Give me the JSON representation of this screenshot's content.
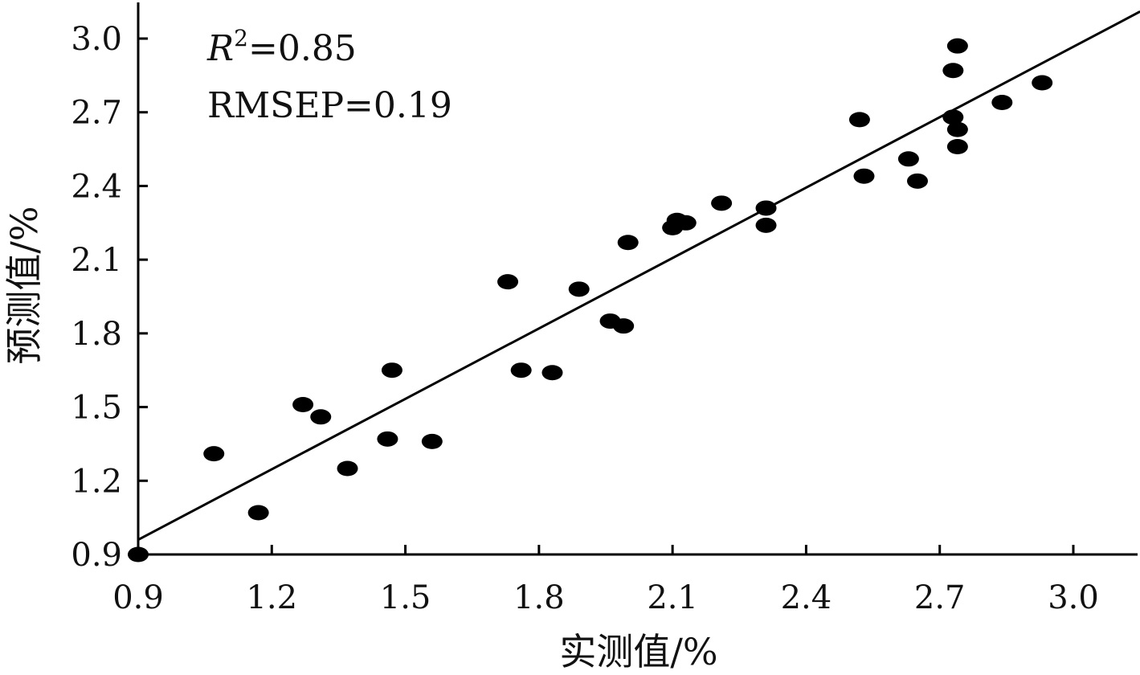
{
  "chart_data": {
    "type": "scatter",
    "xlabel": "实测值/%",
    "ylabel": "预测值/%",
    "xlim": [
      0.9,
      3.15
    ],
    "ylim": [
      0.9,
      3.1
    ],
    "x_ticks": [
      "0.9",
      "1.2",
      "1.5",
      "1.8",
      "2.1",
      "2.4",
      "2.7",
      "3.0"
    ],
    "y_ticks": [
      "0.9",
      "1.2",
      "1.5",
      "1.8",
      "2.1",
      "2.4",
      "2.7",
      "3.0"
    ],
    "grid": false,
    "annotations": {
      "r2_symbol": "R",
      "r2_sup": "2",
      "r2_value": "=0.85",
      "rmsep": "RMSEP=0.19"
    },
    "fit_line": {
      "x": [
        0.9,
        3.15
      ],
      "y": [
        0.96,
        3.11
      ]
    },
    "colors": {
      "marker": "#000000",
      "line": "#000000",
      "axis": "#000000"
    },
    "points": [
      {
        "x": 0.9,
        "y": 0.9
      },
      {
        "x": 1.07,
        "y": 1.31
      },
      {
        "x": 1.17,
        "y": 1.07
      },
      {
        "x": 1.27,
        "y": 1.51
      },
      {
        "x": 1.31,
        "y": 1.46
      },
      {
        "x": 1.37,
        "y": 1.25
      },
      {
        "x": 1.46,
        "y": 1.37
      },
      {
        "x": 1.47,
        "y": 1.65
      },
      {
        "x": 1.56,
        "y": 1.36
      },
      {
        "x": 1.73,
        "y": 2.01
      },
      {
        "x": 1.76,
        "y": 1.65
      },
      {
        "x": 1.83,
        "y": 1.64
      },
      {
        "x": 1.89,
        "y": 1.98
      },
      {
        "x": 1.96,
        "y": 1.85
      },
      {
        "x": 1.99,
        "y": 1.83
      },
      {
        "x": 2.0,
        "y": 2.17
      },
      {
        "x": 2.1,
        "y": 2.23
      },
      {
        "x": 2.11,
        "y": 2.26
      },
      {
        "x": 2.13,
        "y": 2.25
      },
      {
        "x": 2.21,
        "y": 2.33
      },
      {
        "x": 2.31,
        "y": 2.31
      },
      {
        "x": 2.31,
        "y": 2.24
      },
      {
        "x": 2.52,
        "y": 2.67
      },
      {
        "x": 2.53,
        "y": 2.44
      },
      {
        "x": 2.63,
        "y": 2.51
      },
      {
        "x": 2.65,
        "y": 2.42
      },
      {
        "x": 2.73,
        "y": 2.87
      },
      {
        "x": 2.73,
        "y": 2.68
      },
      {
        "x": 2.74,
        "y": 2.97
      },
      {
        "x": 2.74,
        "y": 2.63
      },
      {
        "x": 2.74,
        "y": 2.56
      },
      {
        "x": 2.84,
        "y": 2.74
      },
      {
        "x": 2.93,
        "y": 2.82
      }
    ]
  }
}
